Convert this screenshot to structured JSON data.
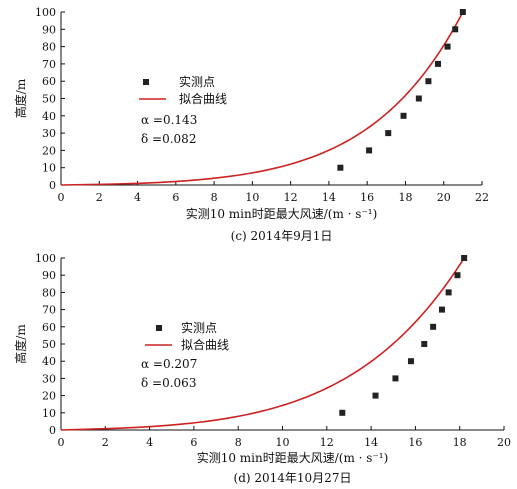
{
  "chart_data": [
    {
      "type": "scatter",
      "caption": "(c) 2014年9月1日",
      "xlabel": "实测10 min时距最大风速/(m · s⁻¹)",
      "ylabel": "高度/m",
      "xlim": [
        0,
        22
      ],
      "ylim": [
        0,
        100
      ],
      "x_ticks": [
        0,
        2,
        4,
        6,
        8,
        10,
        12,
        14,
        16,
        18,
        20,
        22
      ],
      "y_ticks": [
        0,
        10,
        20,
        30,
        40,
        50,
        60,
        70,
        80,
        90,
        100
      ],
      "grid": false,
      "legend": {
        "placement": "center-left",
        "entries": [
          "实测点",
          "拟合曲线"
        ]
      },
      "annotations": [
        "α =0.143",
        "δ =0.082"
      ],
      "series": [
        {
          "name": "实测点",
          "kind": "scatter",
          "color": "#222222",
          "x": [
            14.6,
            16.1,
            17.1,
            17.9,
            18.7,
            19.2,
            19.7,
            20.2,
            20.6,
            21.0
          ],
          "y": [
            10,
            20,
            30,
            40,
            50,
            60,
            70,
            80,
            90,
            100
          ]
        },
        {
          "name": "拟合曲线",
          "kind": "line",
          "color": "#cc2222",
          "alpha": 0.143,
          "delta": 0.082,
          "x_ref": 21.0,
          "y_ref": 100
        }
      ]
    },
    {
      "type": "scatter",
      "caption": "(d) 2014年10月27日",
      "xlabel": "实测10 min时距最大风速/(m · s⁻¹)",
      "ylabel": "高度/m",
      "xlim": [
        0,
        20
      ],
      "ylim": [
        0,
        100
      ],
      "x_ticks": [
        0,
        2,
        4,
        6,
        8,
        10,
        12,
        14,
        16,
        18,
        20
      ],
      "y_ticks": [
        0,
        10,
        20,
        30,
        40,
        50,
        60,
        70,
        80,
        90,
        100
      ],
      "grid": false,
      "legend": {
        "placement": "center-left",
        "entries": [
          "实测点",
          "拟合曲线"
        ]
      },
      "annotations": [
        "α =0.207",
        "δ =0.063"
      ],
      "series": [
        {
          "name": "实测点",
          "kind": "scatter",
          "color": "#222222",
          "x": [
            12.7,
            14.2,
            15.1,
            15.8,
            16.4,
            16.8,
            17.2,
            17.5,
            17.9,
            18.2
          ],
          "y": [
            10,
            20,
            30,
            40,
            50,
            60,
            70,
            80,
            90,
            100
          ]
        },
        {
          "name": "拟合曲线",
          "kind": "line",
          "color": "#cc2222",
          "alpha": 0.207,
          "delta": 0.063,
          "x_ref": 18.2,
          "y_ref": 100
        }
      ]
    }
  ]
}
